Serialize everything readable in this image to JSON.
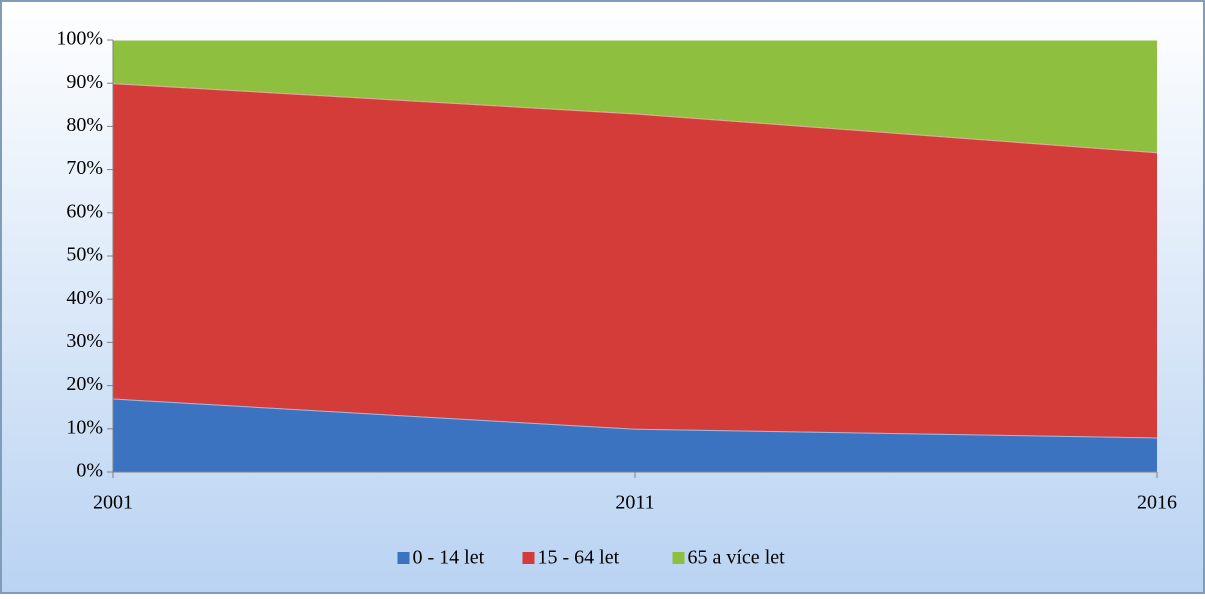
{
  "chart_data": {
    "type": "stacked_area_percent",
    "categories": [
      "2001",
      "2011",
      "2016"
    ],
    "series": [
      {
        "name": "0 - 14 let",
        "color": "#3b73c0",
        "values": [
          17,
          10,
          8
        ]
      },
      {
        "name": "15 - 64 let",
        "color": "#d43c3a",
        "values": [
          73,
          73,
          66
        ]
      },
      {
        "name": "65 a více let",
        "color": "#8fbf3e",
        "values": [
          10,
          17,
          26
        ]
      }
    ],
    "ylim": [
      0,
      100
    ],
    "yticks": [
      {
        "value": 0,
        "label": "0%"
      },
      {
        "value": 10,
        "label": "10%"
      },
      {
        "value": 20,
        "label": "20%"
      },
      {
        "value": 30,
        "label": "30%"
      },
      {
        "value": 40,
        "label": "40%"
      },
      {
        "value": 50,
        "label": "50%"
      },
      {
        "value": 60,
        "label": "60%"
      },
      {
        "value": 70,
        "label": "70%"
      },
      {
        "value": 80,
        "label": "80%"
      },
      {
        "value": 90,
        "label": "90%"
      },
      {
        "value": 100,
        "label": "100%"
      }
    ],
    "legend": "bottom"
  }
}
